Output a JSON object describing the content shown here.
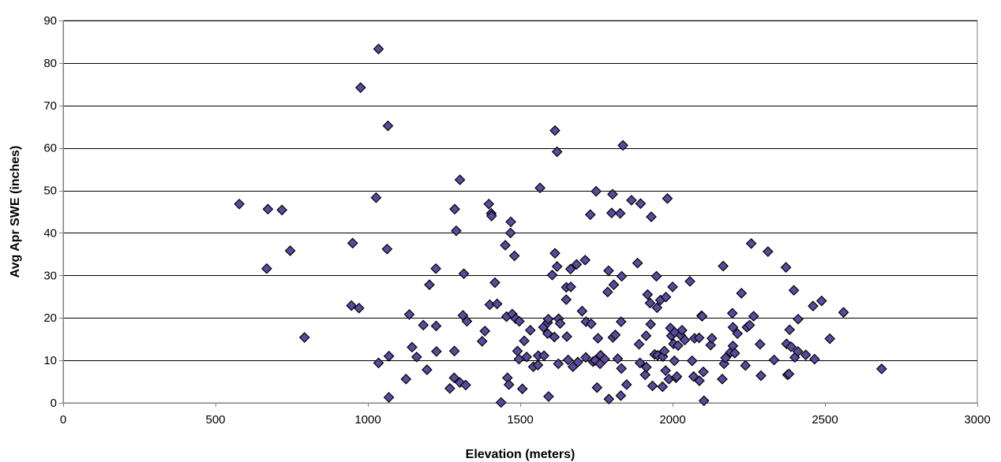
{
  "chart_data": {
    "type": "scatter",
    "title": "",
    "xlabel": "Elevation (meters)",
    "ylabel": "Avg Apr SWE (inches)",
    "xlim": [
      0,
      3000
    ],
    "ylim": [
      0,
      90
    ],
    "xticks": [
      0,
      500,
      1000,
      1500,
      2000,
      2500,
      3000
    ],
    "yticks": [
      0,
      10,
      20,
      30,
      40,
      50,
      60,
      70,
      80,
      90
    ],
    "grid": "horizontal",
    "legend": "none",
    "marker": "diamond",
    "colors": {
      "marker_fill": "#5a4a9e",
      "marker_stroke": "#000000",
      "gridline": "#000000",
      "axis": "#808080"
    },
    "points": [
      [
        578,
        46.8
      ],
      [
        668,
        31.6
      ],
      [
        672,
        45.6
      ],
      [
        718,
        45.4
      ],
      [
        745,
        35.8
      ],
      [
        792,
        15.4
      ],
      [
        950,
        37.6
      ],
      [
        946,
        22.9
      ],
      [
        971,
        22.3
      ],
      [
        976,
        74.2
      ],
      [
        1027,
        48.3
      ],
      [
        1035,
        83.3
      ],
      [
        1035,
        9.4
      ],
      [
        1066,
        65.2
      ],
      [
        1063,
        36.2
      ],
      [
        1069,
        1.3
      ],
      [
        1069,
        11.0
      ],
      [
        1125,
        5.6
      ],
      [
        1136,
        20.8
      ],
      [
        1145,
        13.1
      ],
      [
        1160,
        10.8
      ],
      [
        1182,
        18.3
      ],
      [
        1194,
        7.8
      ],
      [
        1202,
        27.8
      ],
      [
        1223,
        31.6
      ],
      [
        1224,
        18.1
      ],
      [
        1225,
        12.1
      ],
      [
        1269,
        3.4
      ],
      [
        1283,
        5.9
      ],
      [
        1284,
        12.2
      ],
      [
        1285,
        45.6
      ],
      [
        1290,
        40.5
      ],
      [
        1302,
        52.5
      ],
      [
        1302,
        4.8
      ],
      [
        1312,
        20.6
      ],
      [
        1315,
        30.4
      ],
      [
        1321,
        4.2
      ],
      [
        1325,
        19.2
      ],
      [
        1375,
        14.5
      ],
      [
        1384,
        16.9
      ],
      [
        1397,
        46.8
      ],
      [
        1400,
        23.1
      ],
      [
        1405,
        44.6
      ],
      [
        1406,
        44.0
      ],
      [
        1417,
        28.3
      ],
      [
        1424,
        23.3
      ],
      [
        1437,
        0.1
      ],
      [
        1451,
        37.1
      ],
      [
        1455,
        20.3
      ],
      [
        1458,
        5.9
      ],
      [
        1463,
        4.3
      ],
      [
        1468,
        40.0
      ],
      [
        1469,
        42.6
      ],
      [
        1474,
        20.9
      ],
      [
        1481,
        34.6
      ],
      [
        1485,
        19.8
      ],
      [
        1491,
        12.2
      ],
      [
        1497,
        19.2
      ],
      [
        1496,
        10.3
      ],
      [
        1507,
        3.3
      ],
      [
        1513,
        14.6
      ],
      [
        1521,
        10.8
      ],
      [
        1533,
        17.1
      ],
      [
        1543,
        8.5
      ],
      [
        1558,
        8.9
      ],
      [
        1559,
        11.1
      ],
      [
        1565,
        50.6
      ],
      [
        1576,
        17.8
      ],
      [
        1578,
        11.1
      ],
      [
        1590,
        18.9
      ],
      [
        1590,
        16.3
      ],
      [
        1592,
        19.7
      ],
      [
        1593,
        1.5
      ],
      [
        1605,
        30.1
      ],
      [
        1612,
        15.5
      ],
      [
        1614,
        64.1
      ],
      [
        1614,
        35.2
      ],
      [
        1621,
        59.1
      ],
      [
        1621,
        32.1
      ],
      [
        1625,
        9.2
      ],
      [
        1626,
        19.8
      ],
      [
        1631,
        18.7
      ],
      [
        1651,
        27.2
      ],
      [
        1651,
        24.3
      ],
      [
        1653,
        15.6
      ],
      [
        1657,
        10.1
      ],
      [
        1665,
        31.5
      ],
      [
        1666,
        27.3
      ],
      [
        1673,
        8.5
      ],
      [
        1685,
        32.6
      ],
      [
        1689,
        9.6
      ],
      [
        1703,
        21.6
      ],
      [
        1713,
        33.6
      ],
      [
        1715,
        10.7
      ],
      [
        1716,
        19.1
      ],
      [
        1730,
        44.3
      ],
      [
        1733,
        18.6
      ],
      [
        1739,
        9.7
      ],
      [
        1746,
        10.0
      ],
      [
        1749,
        49.8
      ],
      [
        1752,
        3.6
      ],
      [
        1755,
        15.2
      ],
      [
        1762,
        9.2
      ],
      [
        1764,
        11.2
      ],
      [
        1777,
        10.3
      ],
      [
        1787,
        26.1
      ],
      [
        1790,
        31.1
      ],
      [
        1791,
        0.9
      ],
      [
        1800,
        44.7
      ],
      [
        1803,
        49.1
      ],
      [
        1804,
        15.4
      ],
      [
        1807,
        27.8
      ],
      [
        1812,
        16.0
      ],
      [
        1820,
        10.4
      ],
      [
        1828,
        44.6
      ],
      [
        1830,
        1.7
      ],
      [
        1832,
        8.1
      ],
      [
        1831,
        19.1
      ],
      [
        1833,
        29.8
      ],
      [
        1837,
        60.6
      ],
      [
        1849,
        4.3
      ],
      [
        1865,
        47.7
      ],
      [
        1885,
        32.9
      ],
      [
        1890,
        13.8
      ],
      [
        1893,
        9.4
      ],
      [
        1895,
        46.9
      ],
      [
        1910,
        6.6
      ],
      [
        1913,
        15.8
      ],
      [
        1914,
        8.4
      ],
      [
        1918,
        25.5
      ],
      [
        1926,
        23.5
      ],
      [
        1928,
        18.5
      ],
      [
        1930,
        43.8
      ],
      [
        1934,
        4.0
      ],
      [
        1941,
        11.4
      ],
      [
        1947,
        29.8
      ],
      [
        1949,
        22.4
      ],
      [
        1951,
        11.2
      ],
      [
        1960,
        24.2
      ],
      [
        1967,
        3.8
      ],
      [
        1968,
        10.9
      ],
      [
        1973,
        12.2
      ],
      [
        1977,
        7.6
      ],
      [
        1978,
        24.9
      ],
      [
        1983,
        48.1
      ],
      [
        1988,
        5.6
      ],
      [
        1993,
        17.6
      ],
      [
        1996,
        15.8
      ],
      [
        2000,
        27.3
      ],
      [
        2003,
        13.9
      ],
      [
        2007,
        16.6
      ],
      [
        2006,
        9.9
      ],
      [
        2011,
        5.9
      ],
      [
        2014,
        6.2
      ],
      [
        2018,
        13.5
      ],
      [
        2027,
        15.9
      ],
      [
        2031,
        17.1
      ],
      [
        2040,
        14.8
      ],
      [
        2057,
        28.6
      ],
      [
        2064,
        9.9
      ],
      [
        2069,
        6.2
      ],
      [
        2072,
        15.2
      ],
      [
        2087,
        15.3
      ],
      [
        2088,
        5.2
      ],
      [
        2095,
        20.5
      ],
      [
        2097,
        20.4
      ],
      [
        2101,
        7.3
      ],
      [
        2103,
        0.5
      ],
      [
        2125,
        13.6
      ],
      [
        2129,
        15.2
      ],
      [
        2163,
        5.6
      ],
      [
        2166,
        32.2
      ],
      [
        2169,
        9.2
      ],
      [
        2174,
        10.6
      ],
      [
        2190,
        11.9
      ],
      [
        2196,
        21.1
      ],
      [
        2198,
        17.8
      ],
      [
        2198,
        13.4
      ],
      [
        2204,
        11.7
      ],
      [
        2213,
        16.3
      ],
      [
        2226,
        25.8
      ],
      [
        2239,
        8.8
      ],
      [
        2244,
        17.8
      ],
      [
        2253,
        18.3
      ],
      [
        2258,
        37.5
      ],
      [
        2266,
        20.4
      ],
      [
        2287,
        13.8
      ],
      [
        2290,
        6.4
      ],
      [
        2313,
        35.6
      ],
      [
        2333,
        10.1
      ],
      [
        2372,
        31.9
      ],
      [
        2374,
        13.9
      ],
      [
        2377,
        6.6
      ],
      [
        2382,
        6.8
      ],
      [
        2384,
        17.2
      ],
      [
        2389,
        13.2
      ],
      [
        2398,
        26.5
      ],
      [
        2401,
        10.7
      ],
      [
        2412,
        19.7
      ],
      [
        2411,
        12.1
      ],
      [
        2437,
        11.3
      ],
      [
        2461,
        22.8
      ],
      [
        2466,
        10.3
      ],
      [
        2489,
        24.0
      ],
      [
        2516,
        15.1
      ],
      [
        2561,
        21.3
      ],
      [
        2686,
        8.0
      ]
    ]
  }
}
